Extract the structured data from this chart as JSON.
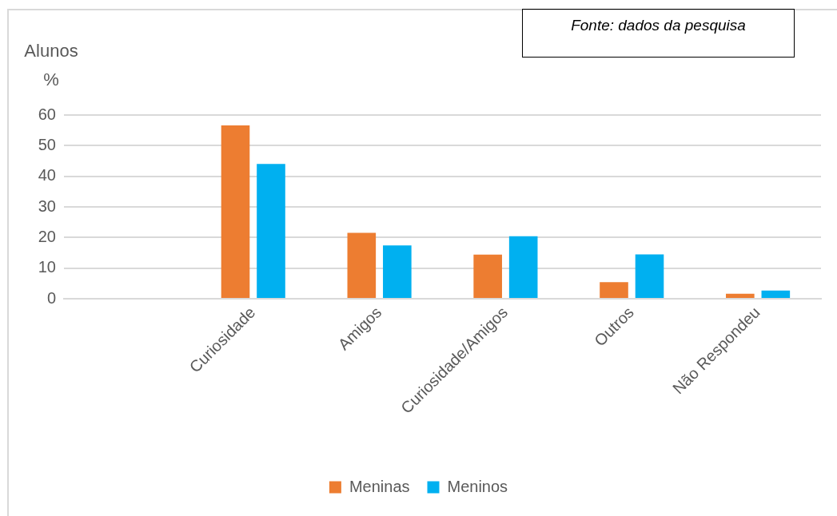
{
  "chart_data": {
    "type": "bar",
    "ylabel": "Alunos %",
    "annotations": [
      "Fonte: dados da pesquisa"
    ],
    "categories": [
      null,
      "Curiosidade",
      "Amigos",
      "Curiosidade/Amigos",
      "Outros",
      "Não Respondeu"
    ],
    "series": [
      {
        "name": "Meninas",
        "color": "#ed7d31",
        "values": [
          null,
          56.6,
          21.5,
          14.4,
          5.4,
          1.6
        ]
      },
      {
        "name": "Meninos",
        "color": "#00b0f0",
        "values": [
          null,
          44.0,
          17.4,
          20.4,
          14.5,
          2.7
        ]
      }
    ],
    "ylim": [
      0,
      60
    ],
    "yticks": [
      0,
      10,
      20,
      30,
      40,
      50,
      60
    ],
    "grid": true,
    "legend": "bottom"
  }
}
